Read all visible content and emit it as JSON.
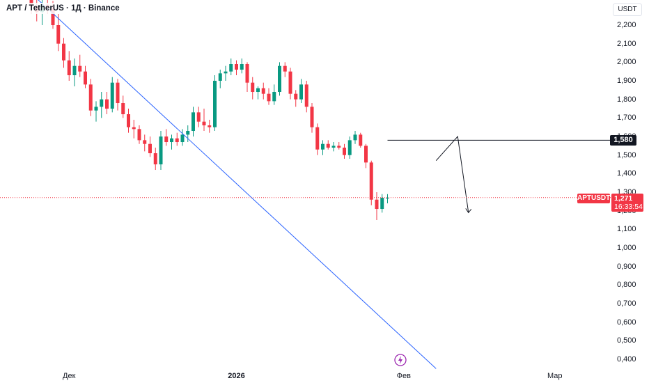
{
  "header": {
    "title": "APT / TetherUS · 1Д · Binance"
  },
  "price_axis": {
    "currency": "USDT",
    "ticks": [
      "2,200",
      "2,100",
      "2,000",
      "1,900",
      "1,800",
      "1,700",
      "1,600",
      "1,500",
      "1,400",
      "1,300",
      "1,200",
      "1,100",
      "1,000",
      "0,900",
      "0,800",
      "0,700",
      "0,600",
      "0,500",
      "0,400"
    ],
    "tick_values": [
      2.2,
      2.1,
      2.0,
      1.9,
      1.8,
      1.7,
      1.6,
      1.5,
      1.4,
      1.3,
      1.2,
      1.1,
      1.0,
      0.9,
      0.8,
      0.7,
      0.6,
      0.5,
      0.4
    ]
  },
  "time_axis": {
    "labels": [
      {
        "text": "Дек",
        "bold": false,
        "candle_index": 7
      },
      {
        "text": "2026",
        "bold": true,
        "candle_index": 38
      },
      {
        "text": "Фев",
        "bold": false,
        "candle_index": 69
      },
      {
        "text": "Мар",
        "bold": false,
        "candle_index": 97
      }
    ]
  },
  "markers": {
    "level_value": "1,580",
    "current_price": "1,271",
    "countdown": "16:33:54",
    "symbol": "APTUSDT"
  },
  "colors": {
    "up": "#089981",
    "down": "#f23645",
    "trendline": "#2962ff",
    "drawing": "#131722",
    "price_line": "#f23645",
    "lightning": "#9c27b0"
  },
  "chart_data": {
    "type": "candlestick",
    "symbol": "APT / TetherUS",
    "interval": "1Д",
    "exchange": "Binance",
    "ylim": [
      0.37,
      2.34
    ],
    "candles": [
      [
        2.36,
        2.4,
        2.26,
        2.3
      ],
      [
        2.3,
        2.34,
        2.22,
        2.27
      ],
      [
        2.27,
        2.36,
        2.2,
        2.31
      ],
      [
        2.31,
        2.36,
        2.26,
        2.29
      ],
      [
        2.29,
        2.33,
        2.18,
        2.2
      ],
      [
        2.2,
        2.26,
        2.06,
        2.1
      ],
      [
        2.1,
        2.13,
        1.97,
        2.01
      ],
      [
        2.01,
        2.06,
        1.9,
        1.93
      ],
      [
        1.93,
        2.02,
        1.87,
        1.98
      ],
      [
        1.98,
        2.04,
        1.92,
        1.95
      ],
      [
        1.95,
        1.98,
        1.86,
        1.88
      ],
      [
        1.88,
        1.91,
        1.71,
        1.74
      ],
      [
        1.74,
        1.79,
        1.68,
        1.76
      ],
      [
        1.76,
        1.84,
        1.7,
        1.8
      ],
      [
        1.8,
        1.84,
        1.72,
        1.75
      ],
      [
        1.75,
        1.92,
        1.73,
        1.89
      ],
      [
        1.89,
        1.91,
        1.74,
        1.78
      ],
      [
        1.78,
        1.82,
        1.7,
        1.72
      ],
      [
        1.72,
        1.75,
        1.62,
        1.65
      ],
      [
        1.65,
        1.69,
        1.59,
        1.64
      ],
      [
        1.64,
        1.66,
        1.56,
        1.58
      ],
      [
        1.58,
        1.61,
        1.52,
        1.56
      ],
      [
        1.56,
        1.6,
        1.49,
        1.51
      ],
      [
        1.51,
        1.54,
        1.42,
        1.45
      ],
      [
        1.45,
        1.63,
        1.42,
        1.6
      ],
      [
        1.6,
        1.64,
        1.55,
        1.57
      ],
      [
        1.57,
        1.61,
        1.53,
        1.59
      ],
      [
        1.59,
        1.62,
        1.55,
        1.57
      ],
      [
        1.57,
        1.64,
        1.55,
        1.61
      ],
      [
        1.61,
        1.66,
        1.57,
        1.63
      ],
      [
        1.63,
        1.76,
        1.6,
        1.73
      ],
      [
        1.73,
        1.76,
        1.65,
        1.68
      ],
      [
        1.68,
        1.75,
        1.63,
        1.66
      ],
      [
        1.66,
        1.69,
        1.62,
        1.65
      ],
      [
        1.65,
        1.93,
        1.63,
        1.9
      ],
      [
        1.9,
        1.96,
        1.86,
        1.94
      ],
      [
        1.94,
        1.98,
        1.9,
        1.95
      ],
      [
        1.95,
        2.02,
        1.93,
        1.99
      ],
      [
        1.99,
        2.01,
        1.93,
        1.96
      ],
      [
        1.96,
        2.02,
        1.94,
        1.99
      ],
      [
        1.99,
        2.0,
        1.84,
        1.89
      ],
      [
        1.89,
        1.92,
        1.8,
        1.84
      ],
      [
        1.84,
        1.87,
        1.8,
        1.86
      ],
      [
        1.86,
        1.89,
        1.8,
        1.83
      ],
      [
        1.83,
        1.86,
        1.77,
        1.79
      ],
      [
        1.79,
        1.88,
        1.77,
        1.84
      ],
      [
        1.84,
        2.0,
        1.82,
        1.98
      ],
      [
        1.98,
        2.0,
        1.92,
        1.95
      ],
      [
        1.95,
        1.97,
        1.8,
        1.83
      ],
      [
        1.83,
        1.85,
        1.76,
        1.8
      ],
      [
        1.8,
        1.91,
        1.78,
        1.88
      ],
      [
        1.88,
        1.9,
        1.73,
        1.76
      ],
      [
        1.76,
        1.78,
        1.62,
        1.65
      ],
      [
        1.65,
        1.67,
        1.5,
        1.53
      ],
      [
        1.53,
        1.58,
        1.5,
        1.56
      ],
      [
        1.56,
        1.58,
        1.53,
        1.54
      ],
      [
        1.54,
        1.57,
        1.52,
        1.55
      ],
      [
        1.55,
        1.57,
        1.53,
        1.54
      ],
      [
        1.54,
        1.56,
        1.48,
        1.5
      ],
      [
        1.5,
        1.6,
        1.48,
        1.58
      ],
      [
        1.58,
        1.63,
        1.56,
        1.61
      ],
      [
        1.61,
        1.62,
        1.54,
        1.55
      ],
      [
        1.55,
        1.56,
        1.43,
        1.46
      ],
      [
        1.46,
        1.47,
        1.23,
        1.26
      ],
      [
        1.26,
        1.3,
        1.15,
        1.21
      ],
      [
        1.21,
        1.29,
        1.19,
        1.27
      ],
      [
        1.27,
        1.29,
        1.24,
        1.27
      ]
    ],
    "trendline": {
      "from": {
        "candle_index": 0,
        "price": 2.37
      },
      "to": {
        "candle_index": 75,
        "price": 0.35
      }
    },
    "horizontal_level": 1.58,
    "projection_path": [
      {
        "candle_index": 75,
        "price": 1.47
      },
      {
        "candle_index": 79,
        "price": 1.6
      },
      {
        "candle_index": 81,
        "price": 1.19
      }
    ],
    "current_price": 1.271
  }
}
